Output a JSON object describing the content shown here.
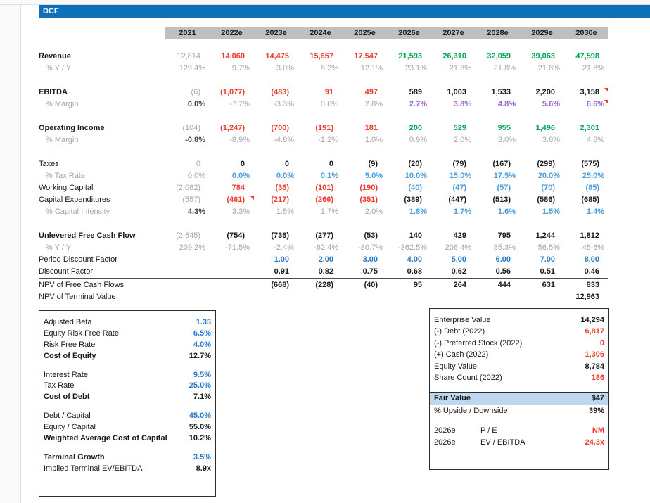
{
  "title": {
    "label": "DCF"
  },
  "colors": {
    "accent_bar": "#0F70BA",
    "header_band": "#BFBFBF",
    "red": "#EF3B2D",
    "green": "#00A859",
    "light_blue": "#4A9EDC",
    "strong_blue": "#2478C8",
    "purple": "#9966CC",
    "gray": "#A6A6A6",
    "fair_value_bg": "#BDD7EE"
  },
  "table": {
    "columns": [
      "2021",
      "2022e",
      "2023e",
      "2024e",
      "2025e",
      "2026e",
      "2027e",
      "2028e",
      "2029e",
      "2030e"
    ],
    "rows": [
      {
        "label": "Revenue",
        "lcls": "bold",
        "cells": [
          [
            "12,814",
            "g"
          ],
          [
            "14,060",
            "r"
          ],
          [
            "14,475",
            "r"
          ],
          [
            "15,657",
            "r"
          ],
          [
            "17,547",
            "r"
          ],
          [
            "21,593",
            "grn"
          ],
          [
            "26,310",
            "grn"
          ],
          [
            "32,059",
            "grn"
          ],
          [
            "39,063",
            "grn"
          ],
          [
            "47,598",
            "grn"
          ]
        ]
      },
      {
        "label": "% Y / Y",
        "lcls": "sub",
        "cells": [
          [
            "129.4%",
            "g"
          ],
          [
            "9.7%",
            "g"
          ],
          [
            "3.0%",
            "g"
          ],
          [
            "8.2%",
            "g"
          ],
          [
            "12.1%",
            "g"
          ],
          [
            "23.1%",
            "g"
          ],
          [
            "21.8%",
            "g"
          ],
          [
            "21.8%",
            "g"
          ],
          [
            "21.8%",
            "g"
          ],
          [
            "21.8%",
            "g"
          ]
        ]
      },
      {
        "blank": true
      },
      {
        "label": "EBITDA",
        "lcls": "bold",
        "cells": [
          [
            "(6)",
            "g"
          ],
          [
            "(1,077)",
            "r"
          ],
          [
            "(483)",
            "r"
          ],
          [
            "91",
            "r"
          ],
          [
            "497",
            "r"
          ],
          [
            "589",
            "k"
          ],
          [
            "1,003",
            "k"
          ],
          [
            "1,533",
            "k"
          ],
          [
            "2,200",
            "k"
          ],
          [
            "3,158",
            "k mk"
          ]
        ]
      },
      {
        "label": "% Margin",
        "lcls": "sub",
        "cells": [
          [
            "0.0%",
            "dg"
          ],
          [
            "-7.7%",
            "g"
          ],
          [
            "-3.3%",
            "g"
          ],
          [
            "0.6%",
            "g"
          ],
          [
            "2.8%",
            "g"
          ],
          [
            "2.7%",
            "p"
          ],
          [
            "3.8%",
            "p"
          ],
          [
            "4.8%",
            "p"
          ],
          [
            "5.6%",
            "p"
          ],
          [
            "6.6%",
            "p mk"
          ]
        ]
      },
      {
        "blank": true
      },
      {
        "label": "Operating Income",
        "lcls": "bold",
        "cells": [
          [
            "(104)",
            "g"
          ],
          [
            "(1,247)",
            "r"
          ],
          [
            "(700)",
            "r"
          ],
          [
            "(191)",
            "r"
          ],
          [
            "181",
            "r"
          ],
          [
            "200",
            "grn"
          ],
          [
            "529",
            "grn"
          ],
          [
            "955",
            "grn"
          ],
          [
            "1,496",
            "grn"
          ],
          [
            "2,301",
            "grn"
          ]
        ]
      },
      {
        "label": "% Margin",
        "lcls": "sub",
        "cells": [
          [
            "-0.8%",
            "dg"
          ],
          [
            "-8.9%",
            "g"
          ],
          [
            "-4.8%",
            "g"
          ],
          [
            "-1.2%",
            "g"
          ],
          [
            "1.0%",
            "g"
          ],
          [
            "0.9%",
            "g"
          ],
          [
            "2.0%",
            "g"
          ],
          [
            "3.0%",
            "g"
          ],
          [
            "3.8%",
            "g"
          ],
          [
            "4.8%",
            "g"
          ]
        ]
      },
      {
        "blank": true
      },
      {
        "label": "Taxes",
        "cells": [
          [
            "0",
            "g"
          ],
          [
            "0",
            "k"
          ],
          [
            "0",
            "k"
          ],
          [
            "0",
            "k"
          ],
          [
            "(9)",
            "k"
          ],
          [
            "(20)",
            "k"
          ],
          [
            "(79)",
            "k"
          ],
          [
            "(167)",
            "k"
          ],
          [
            "(299)",
            "k"
          ],
          [
            "(575)",
            "k"
          ]
        ]
      },
      {
        "label": "% Tax Rate",
        "lcls": "sub",
        "cells": [
          [
            "0.0%",
            "g"
          ],
          [
            "0.0%",
            "b"
          ],
          [
            "0.0%",
            "b"
          ],
          [
            "0.1%",
            "b"
          ],
          [
            "5.0%",
            "b"
          ],
          [
            "10.0%",
            "b"
          ],
          [
            "15.0%",
            "b"
          ],
          [
            "17.5%",
            "b"
          ],
          [
            "20.0%",
            "b"
          ],
          [
            "25.0%",
            "b"
          ]
        ]
      },
      {
        "label": "Working Capital",
        "cells": [
          [
            "(2,082)",
            "g"
          ],
          [
            "784",
            "r"
          ],
          [
            "(36)",
            "r"
          ],
          [
            "(101)",
            "r"
          ],
          [
            "(190)",
            "r"
          ],
          [
            "(40)",
            "b"
          ],
          [
            "(47)",
            "b"
          ],
          [
            "(57)",
            "b"
          ],
          [
            "(70)",
            "b"
          ],
          [
            "(85)",
            "b"
          ]
        ]
      },
      {
        "label": "Capital Expenditures",
        "cells": [
          [
            "(557)",
            "g"
          ],
          [
            "(461)",
            "r mk"
          ],
          [
            "(217)",
            "r"
          ],
          [
            "(266)",
            "r"
          ],
          [
            "(351)",
            "r"
          ],
          [
            "(389)",
            "k"
          ],
          [
            "(447)",
            "k"
          ],
          [
            "(513)",
            "k"
          ],
          [
            "(586)",
            "k"
          ],
          [
            "(685)",
            "k"
          ]
        ]
      },
      {
        "label": "% Capital Intensity",
        "lcls": "sub",
        "cells": [
          [
            "4.3%",
            "dg"
          ],
          [
            "3.3%",
            "g"
          ],
          [
            "1.5%",
            "g"
          ],
          [
            "1.7%",
            "g"
          ],
          [
            "2.0%",
            "g"
          ],
          [
            "1.8%",
            "b"
          ],
          [
            "1.7%",
            "b"
          ],
          [
            "1.6%",
            "b"
          ],
          [
            "1.5%",
            "b"
          ],
          [
            "1.4%",
            "b"
          ]
        ]
      },
      {
        "blank": true
      },
      {
        "label": "Unlevered Free Cash Flow",
        "lcls": "bold",
        "cells": [
          [
            "(2,645)",
            "g"
          ],
          [
            "(754)",
            "k"
          ],
          [
            "(736)",
            "k"
          ],
          [
            "(277)",
            "k"
          ],
          [
            "(53)",
            "k"
          ],
          [
            "140",
            "k"
          ],
          [
            "429",
            "k"
          ],
          [
            "795",
            "k"
          ],
          [
            "1,244",
            "k"
          ],
          [
            "1,812",
            "k"
          ]
        ]
      },
      {
        "label": "% Y / Y",
        "lcls": "sub",
        "cells": [
          [
            "209.2%",
            "g"
          ],
          [
            "-71.5%",
            "g"
          ],
          [
            "-2.4%",
            "g"
          ],
          [
            "-62.4%",
            "g"
          ],
          [
            "-80.7%",
            "g"
          ],
          [
            "-362.5%",
            "g"
          ],
          [
            "206.4%",
            "g"
          ],
          [
            "85.3%",
            "g"
          ],
          [
            "56.5%",
            "g"
          ],
          [
            "45.6%",
            "g"
          ]
        ]
      },
      {
        "label": "Period Discount Factor",
        "cells": [
          [
            "",
            ""
          ],
          [
            "",
            ""
          ],
          [
            "1.00",
            "B"
          ],
          [
            "2.00",
            "B"
          ],
          [
            "3.00",
            "B"
          ],
          [
            "4.00",
            "B"
          ],
          [
            "5.00",
            "B"
          ],
          [
            "6.00",
            "B"
          ],
          [
            "7.00",
            "B"
          ],
          [
            "8.00",
            "B"
          ]
        ]
      },
      {
        "label": "Discount Factor",
        "rule": true,
        "cells": [
          [
            "",
            ""
          ],
          [
            "",
            ""
          ],
          [
            "0.91",
            "k"
          ],
          [
            "0.82",
            "k"
          ],
          [
            "0.75",
            "k"
          ],
          [
            "0.68",
            "k"
          ],
          [
            "0.62",
            "k"
          ],
          [
            "0.56",
            "k"
          ],
          [
            "0.51",
            "k"
          ],
          [
            "0.46",
            "k"
          ]
        ]
      },
      {
        "label": "NPV of Free Cash Flows",
        "cells": [
          [
            "",
            ""
          ],
          [
            "",
            ""
          ],
          [
            "(668)",
            "k"
          ],
          [
            "(228)",
            "k"
          ],
          [
            "(40)",
            "k"
          ],
          [
            "95",
            "k"
          ],
          [
            "264",
            "k"
          ],
          [
            "444",
            "k"
          ],
          [
            "631",
            "k"
          ],
          [
            "833",
            "k"
          ]
        ]
      },
      {
        "label": "NPV of Terminal Value",
        "cells": [
          [
            "",
            ""
          ],
          [
            "",
            ""
          ],
          [
            "",
            ""
          ],
          [
            "",
            ""
          ],
          [
            "",
            ""
          ],
          [
            "",
            ""
          ],
          [
            "",
            ""
          ],
          [
            "",
            ""
          ],
          [
            "",
            ""
          ],
          [
            "12,963",
            "k"
          ]
        ]
      }
    ]
  },
  "wacc_box": {
    "rows": [
      {
        "label": "Adjusted Beta",
        "value": "1.35",
        "vcls": "B"
      },
      {
        "label": "Equity Risk Free Rate",
        "value": "6.5%",
        "vcls": "B"
      },
      {
        "label": "Risk Free Rate",
        "value": "4.0%",
        "vcls": "B"
      },
      {
        "label": "Cost of Equity",
        "lcls": "bold",
        "value": "12.7%",
        "vcls": "k"
      },
      {
        "blank": true
      },
      {
        "label": "Interest Rate",
        "value": "9.5%",
        "vcls": "B"
      },
      {
        "label": "Tax Rate",
        "value": "25.0%",
        "vcls": "B"
      },
      {
        "label": "Cost of Debt",
        "lcls": "bold",
        "value": "7.1%",
        "vcls": "k"
      },
      {
        "blank": true
      },
      {
        "label": "Debt / Capital",
        "value": "45.0%",
        "vcls": "B"
      },
      {
        "label": "Equity / Capital",
        "value": "55.0%",
        "vcls": "k"
      },
      {
        "label": "Weighted Average Cost of Capital",
        "lcls": "bold",
        "value": "10.2%",
        "vcls": "k"
      },
      {
        "blank": true
      },
      {
        "label": "Terminal Growth",
        "lcls": "bold",
        "value": "3.5%",
        "vcls": "B"
      },
      {
        "label": "Implied Terminal EV/EBITDA",
        "value": "8.9x",
        "vcls": "kreg"
      }
    ]
  },
  "valuation_box": {
    "rows": [
      {
        "label": "Enterprise Value",
        "value": "14,294",
        "vcls": "k"
      },
      {
        "label": "(-) Debt (2022)",
        "value": "6,817",
        "vcls": "r"
      },
      {
        "label": "(-) Preferred Stock (2022)",
        "value": "0",
        "vcls": "r"
      },
      {
        "label": "(+) Cash (2022)",
        "value": "1,306",
        "vcls": "r"
      },
      {
        "label": "Equity Value",
        "value": "8,784",
        "vcls": "k"
      },
      {
        "label": "Share Count (2022)",
        "value": "186",
        "vcls": "r"
      },
      {
        "blank": true
      },
      {
        "label": "Fair Value",
        "lcls": "bold",
        "value": "$47",
        "vcls": "k",
        "highlight": true
      },
      {
        "label": "% Upside / Downside",
        "value": "39%",
        "vcls": "k"
      },
      {
        "blank": true
      },
      {
        "label": "2026e",
        "label2": "P / E",
        "value": "NM",
        "vcls": "r"
      },
      {
        "label": "2026e",
        "label2": "EV / EBITDA",
        "value": "24.3x",
        "vcls": "r"
      }
    ]
  }
}
